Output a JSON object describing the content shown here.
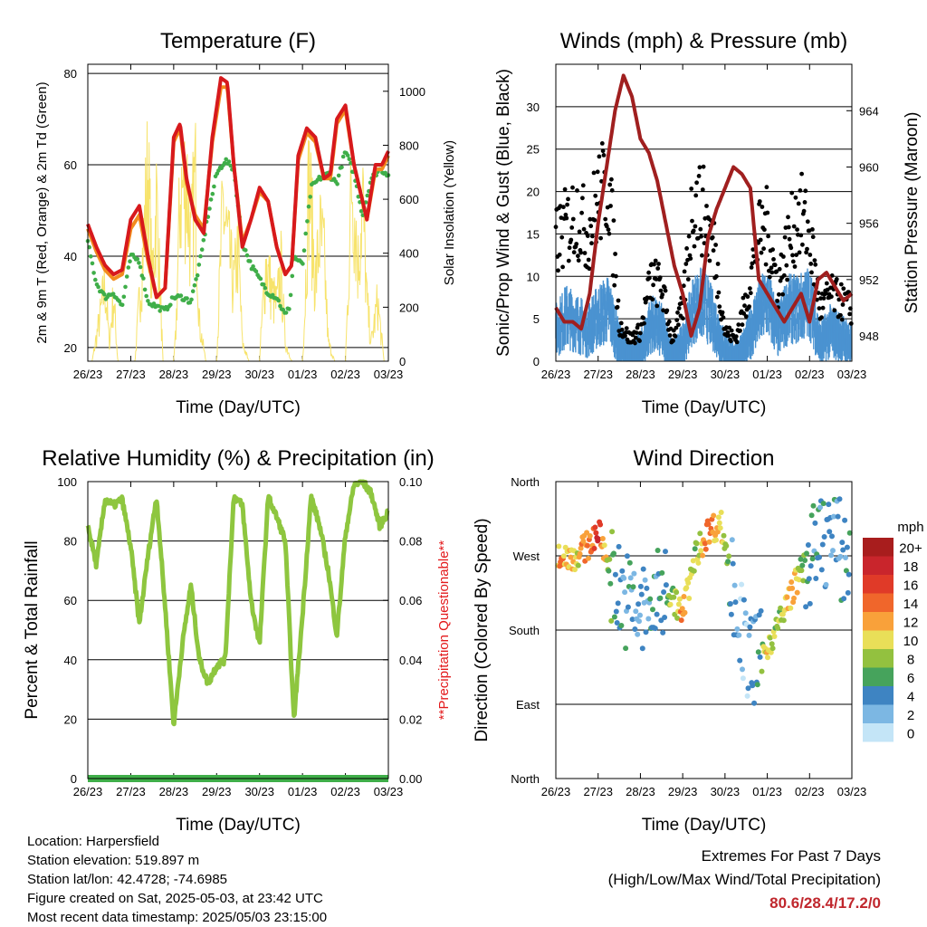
{
  "x_tick_labels": [
    "26/23",
    "27/23",
    "28/23",
    "29/23",
    "30/23",
    "01/23",
    "02/23",
    "03/23"
  ],
  "chart_data": [
    {
      "id": "temperature",
      "type": "line",
      "title": "Temperature (F)",
      "xlabel": "Time (Day/UTC)",
      "ylabel": "2m & 9m T (Red, Orange) & 2m Td (Green)",
      "y2label": "Solar Insolation (Yellow)",
      "ylim": [
        17,
        82
      ],
      "y2lim": [
        0,
        1100
      ],
      "yticks": [
        20,
        40,
        60,
        80
      ],
      "y2ticks": [
        0,
        200,
        400,
        600,
        800,
        1000
      ],
      "colors": {
        "t2m": "#d7191c",
        "t9m": "#f28b1e",
        "td2m": "#3fae49",
        "solar": "#f7e36b"
      },
      "series": [
        {
          "name": "2m T",
          "x": [
            0,
            0.2,
            0.4,
            0.6,
            0.8,
            1.0,
            1.2,
            1.4,
            1.6,
            1.8,
            2.0,
            2.15,
            2.3,
            2.5,
            2.7,
            2.9,
            3.1,
            3.25,
            3.4,
            3.6,
            3.8,
            4.0,
            4.2,
            4.4,
            4.6,
            4.75,
            4.9,
            5.1,
            5.3,
            5.5,
            5.65,
            5.8,
            6.0,
            6.2,
            6.35,
            6.5,
            6.7,
            6.85,
            7.0
          ],
          "values": [
            47,
            42,
            38,
            36,
            37,
            48,
            51,
            40,
            31,
            33,
            66,
            69,
            57,
            48,
            45,
            66,
            79,
            78,
            60,
            42,
            48,
            55,
            52,
            42,
            36,
            38,
            62,
            68,
            66,
            57,
            58,
            70,
            73,
            60,
            54,
            48,
            60,
            60,
            63
          ]
        },
        {
          "name": "9m T",
          "x": [
            0,
            0.2,
            0.4,
            0.6,
            0.8,
            1.0,
            1.2,
            1.4,
            1.6,
            1.8,
            2.0,
            2.15,
            2.3,
            2.5,
            2.7,
            2.9,
            3.1,
            3.25,
            3.4,
            3.6,
            3.8,
            4.0,
            4.2,
            4.4,
            4.6,
            4.75,
            4.9,
            5.1,
            5.3,
            5.5,
            5.65,
            5.8,
            6.0,
            6.2,
            6.35,
            6.5,
            6.7,
            6.85,
            7.0
          ],
          "values": [
            46,
            41,
            37,
            35,
            36,
            46,
            49,
            39,
            31,
            33,
            65,
            68,
            56,
            49,
            46,
            65,
            77,
            77,
            60,
            43,
            48,
            54,
            52,
            42,
            36,
            38,
            61,
            67,
            65,
            57,
            57,
            69,
            72,
            60,
            54,
            48,
            59,
            59,
            62
          ]
        },
        {
          "name": "2m Td",
          "x": [
            0,
            0.2,
            0.4,
            0.6,
            0.8,
            1.0,
            1.2,
            1.4,
            1.6,
            1.8,
            2.0,
            2.2,
            2.4,
            2.6,
            2.8,
            3.0,
            3.2,
            3.4,
            3.6,
            3.8,
            4.0,
            4.2,
            4.4,
            4.6,
            4.7,
            4.8,
            5.0,
            5.2,
            5.4,
            5.6,
            5.8,
            6.0,
            6.2,
            6.4,
            6.6,
            6.8,
            7.0
          ],
          "values": [
            43,
            34,
            31,
            32,
            29,
            40,
            39,
            30,
            29,
            28,
            31,
            31,
            30,
            38,
            49,
            58,
            61,
            59,
            43,
            38,
            35,
            32,
            31,
            27,
            29,
            40,
            38,
            55,
            57,
            58,
            56,
            63,
            58,
            49,
            57,
            59,
            58
          ]
        },
        {
          "name": "Solar Insolation",
          "axis": "y2",
          "x": [
            0.0,
            0.1,
            0.3,
            0.4,
            0.5,
            0.6,
            0.7,
            0.8,
            0.9,
            1.0,
            1.1,
            1.3,
            1.4,
            1.5,
            1.6,
            1.75,
            1.9,
            2.0,
            2.05,
            2.15,
            2.3,
            2.4,
            2.5,
            2.6,
            2.75,
            2.9,
            3.0,
            3.05,
            3.15,
            3.3,
            3.4,
            3.5,
            3.6,
            3.75,
            3.9,
            4.0,
            4.05,
            4.15,
            4.3,
            4.4,
            4.5,
            4.6,
            4.75,
            4.9,
            5.0,
            5.05,
            5.15,
            5.3,
            5.4,
            5.5,
            5.6,
            5.75,
            5.9,
            6.0,
            6.05,
            6.15,
            6.3,
            6.4,
            6.5,
            6.6,
            6.75,
            6.9,
            7.0
          ],
          "values": [
            0,
            0,
            260,
            420,
            100,
            350,
            0,
            0,
            0,
            0,
            0,
            650,
            1030,
            420,
            880,
            0,
            0,
            0,
            150,
            900,
            1000,
            600,
            1010,
            200,
            0,
            0,
            0,
            300,
            850,
            560,
            400,
            620,
            100,
            0,
            0,
            0,
            200,
            540,
            350,
            300,
            500,
            100,
            0,
            0,
            0,
            250,
            1000,
            420,
            680,
            580,
            100,
            0,
            0,
            0,
            300,
            1030,
            520,
            900,
            320,
            100,
            320,
            0,
            0
          ]
        }
      ]
    },
    {
      "id": "winds",
      "type": "scatter",
      "title": "Winds (mph) & Pressure (mb)",
      "xlabel": "Time (Day/UTC)",
      "ylabel": "Sonic/Prop Wind & Gust (Blue, Black)",
      "y2label": "Station Pressure (Maroon)",
      "ylim": [
        0,
        35
      ],
      "y2lim": [
        946.2,
        967.3
      ],
      "yticks": [
        0,
        5,
        10,
        15,
        20,
        25,
        30
      ],
      "y2ticks": [
        948,
        952,
        956,
        960,
        964
      ],
      "colors": {
        "wind": "#4a93d1",
        "gust": "#000000",
        "pressure": "#a01f1f"
      },
      "series": [
        {
          "name": "Wind",
          "x": [
            0,
            0.25,
            0.5,
            0.75,
            1.0,
            1.25,
            1.5,
            1.75,
            2.0,
            2.25,
            2.5,
            2.75,
            3.0,
            3.25,
            3.5,
            3.75,
            4.0,
            4.25,
            4.5,
            4.75,
            5.0,
            5.25,
            5.5,
            5.75,
            6.0,
            6.25,
            6.5,
            6.75,
            7.0
          ],
          "values": [
            6,
            8,
            7,
            6,
            8,
            9,
            4,
            2,
            3,
            7,
            6,
            2,
            4,
            9,
            10,
            7,
            3,
            2,
            4,
            8,
            10,
            6,
            9,
            9,
            10,
            4,
            6,
            5,
            4
          ]
        },
        {
          "name": "Gust",
          "x": [
            0,
            0.25,
            0.5,
            0.75,
            1.0,
            1.25,
            1.5,
            1.75,
            2.0,
            2.25,
            2.5,
            2.75,
            3.0,
            3.25,
            3.5,
            3.75,
            4.0,
            4.25,
            4.5,
            4.75,
            5.0,
            5.25,
            5.5,
            5.75,
            6.0,
            6.25,
            6.5,
            6.75,
            7.0
          ],
          "values": [
            16,
            18,
            20,
            17,
            22,
            24,
            5,
            3,
            4,
            11,
            10,
            3,
            7,
            22,
            20,
            15,
            4,
            3,
            8,
            16,
            18,
            10,
            16,
            20,
            17,
            7,
            9,
            8,
            7
          ]
        },
        {
          "name": "Station Pressure",
          "axis": "y2",
          "x": [
            0,
            0.2,
            0.4,
            0.6,
            0.8,
            1.0,
            1.2,
            1.4,
            1.6,
            1.8,
            2.0,
            2.2,
            2.4,
            2.6,
            2.8,
            3.0,
            3.2,
            3.4,
            3.6,
            3.8,
            4.0,
            4.2,
            4.4,
            4.6,
            4.8,
            5.0,
            5.2,
            5.4,
            5.6,
            5.8,
            6.0,
            6.2,
            6.4,
            6.6,
            6.8,
            7.0
          ],
          "values": [
            950,
            949,
            949,
            948.5,
            951,
            956,
            960,
            964,
            966.5,
            965,
            962,
            961,
            959,
            956,
            953,
            951,
            948,
            950,
            955,
            957,
            958.5,
            960,
            959.5,
            958.5,
            952,
            951,
            950,
            949,
            950,
            951,
            949,
            952,
            952.5,
            951.5,
            950.5,
            951
          ]
        }
      ]
    },
    {
      "id": "humidity",
      "type": "line",
      "title": "Relative Humidity (%) & Precipitation (in)",
      "xlabel": "Time (Day/UTC)",
      "ylabel": "Percent & Total Rainfall",
      "y2label": "**Precipitation Questionable**",
      "ylim": [
        0,
        100
      ],
      "y2lim": [
        0,
        0.1
      ],
      "yticks": [
        0,
        20,
        40,
        60,
        80,
        100
      ],
      "y2ticks": [
        "0.00",
        "0.02",
        "0.04",
        "0.06",
        "0.08",
        "0.10"
      ],
      "colors": {
        "rh": "#8ec63f",
        "precip": "#3fae49",
        "y2label": "#e31a1c"
      },
      "series": [
        {
          "name": "Relative Humidity",
          "x": [
            0,
            0.2,
            0.4,
            0.6,
            0.8,
            1.0,
            1.2,
            1.4,
            1.6,
            1.8,
            2.0,
            2.2,
            2.4,
            2.6,
            2.8,
            3.0,
            3.2,
            3.4,
            3.6,
            3.8,
            4.0,
            4.2,
            4.4,
            4.6,
            4.8,
            5.0,
            5.2,
            5.4,
            5.6,
            5.8,
            6.0,
            6.2,
            6.4,
            6.6,
            6.8,
            7.0
          ],
          "values": [
            85,
            72,
            94,
            92,
            94,
            78,
            52,
            75,
            95,
            58,
            18,
            45,
            65,
            40,
            32,
            38,
            40,
            95,
            92,
            60,
            45,
            95,
            88,
            80,
            20,
            55,
            95,
            85,
            70,
            48,
            82,
            99,
            100,
            96,
            85,
            90
          ]
        },
        {
          "name": "Total Precipitation",
          "axis": "y2",
          "x": [
            0,
            7
          ],
          "values": [
            0,
            0
          ]
        }
      ]
    },
    {
      "id": "wind_direction",
      "type": "scatter",
      "title": "Wind Direction",
      "xlabel": "Time (Day/UTC)",
      "ylabel": "Direction (Colored By Speed)",
      "yticks": [
        "North",
        "East",
        "South",
        "West",
        "North"
      ],
      "ylim": [
        0,
        360
      ],
      "legend": {
        "title": "mph",
        "labels": [
          "20+",
          "18",
          "16",
          "14",
          "12",
          "10",
          "8",
          "6",
          "4",
          "2",
          "0"
        ],
        "colors": [
          "#a81d1d",
          "#c9252c",
          "#e03a28",
          "#f0662b",
          "#f9a13a",
          "#e9df58",
          "#93c13f",
          "#46a35c",
          "#3e84c2",
          "#7cb7e3",
          "#c4e5f7"
        ]
      },
      "series": [
        {
          "name": "Direction",
          "x": [
            0.2,
            0.5,
            0.8,
            1.0,
            1.3,
            1.6,
            2.0,
            2.3,
            2.6,
            3.0,
            3.3,
            3.6,
            3.9,
            4.2,
            4.5,
            4.8,
            5.0,
            5.3,
            5.6,
            5.9,
            6.2,
            6.5,
            6.8
          ],
          "values": [
            270,
            270,
            285,
            300,
            250,
            220,
            200,
            210,
            230,
            200,
            270,
            300,
            310,
            230,
            150,
            140,
            160,
            190,
            230,
            260,
            280,
            300,
            270
          ],
          "speeds": [
            12,
            10,
            14,
            16,
            6,
            4,
            3,
            4,
            6,
            12,
            8,
            14,
            10,
            4,
            2,
            4,
            10,
            8,
            12,
            6,
            4,
            3,
            4
          ]
        }
      ]
    }
  ],
  "station_info": {
    "location": "Location: Harpersfield",
    "elevation": "Station elevation: 519.897 m",
    "latlon": "Station lat/lon: 42.4728; -74.6985",
    "created": "Figure created on Sat, 2025-05-03, at 23:42 UTC",
    "recent": "Most recent data timestamp: 2025/05/03 23:15:00"
  },
  "extremes": {
    "title": "Extremes For Past 7 Days",
    "subtitle": "(High/Low/Max Wind/Total Precipitation)",
    "values": "80.6/28.4/17.2/0"
  }
}
